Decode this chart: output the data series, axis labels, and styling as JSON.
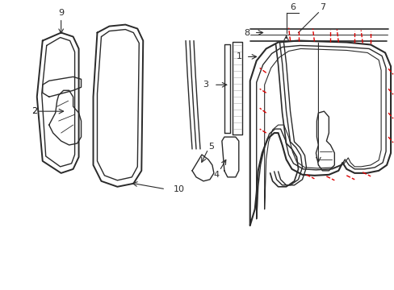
{
  "bg_color": "#ffffff",
  "line_color": "#2a2a2a",
  "red_color": "#dd0000",
  "label_color": "#000000",
  "figsize": [
    4.89,
    3.6
  ],
  "dpi": 100
}
